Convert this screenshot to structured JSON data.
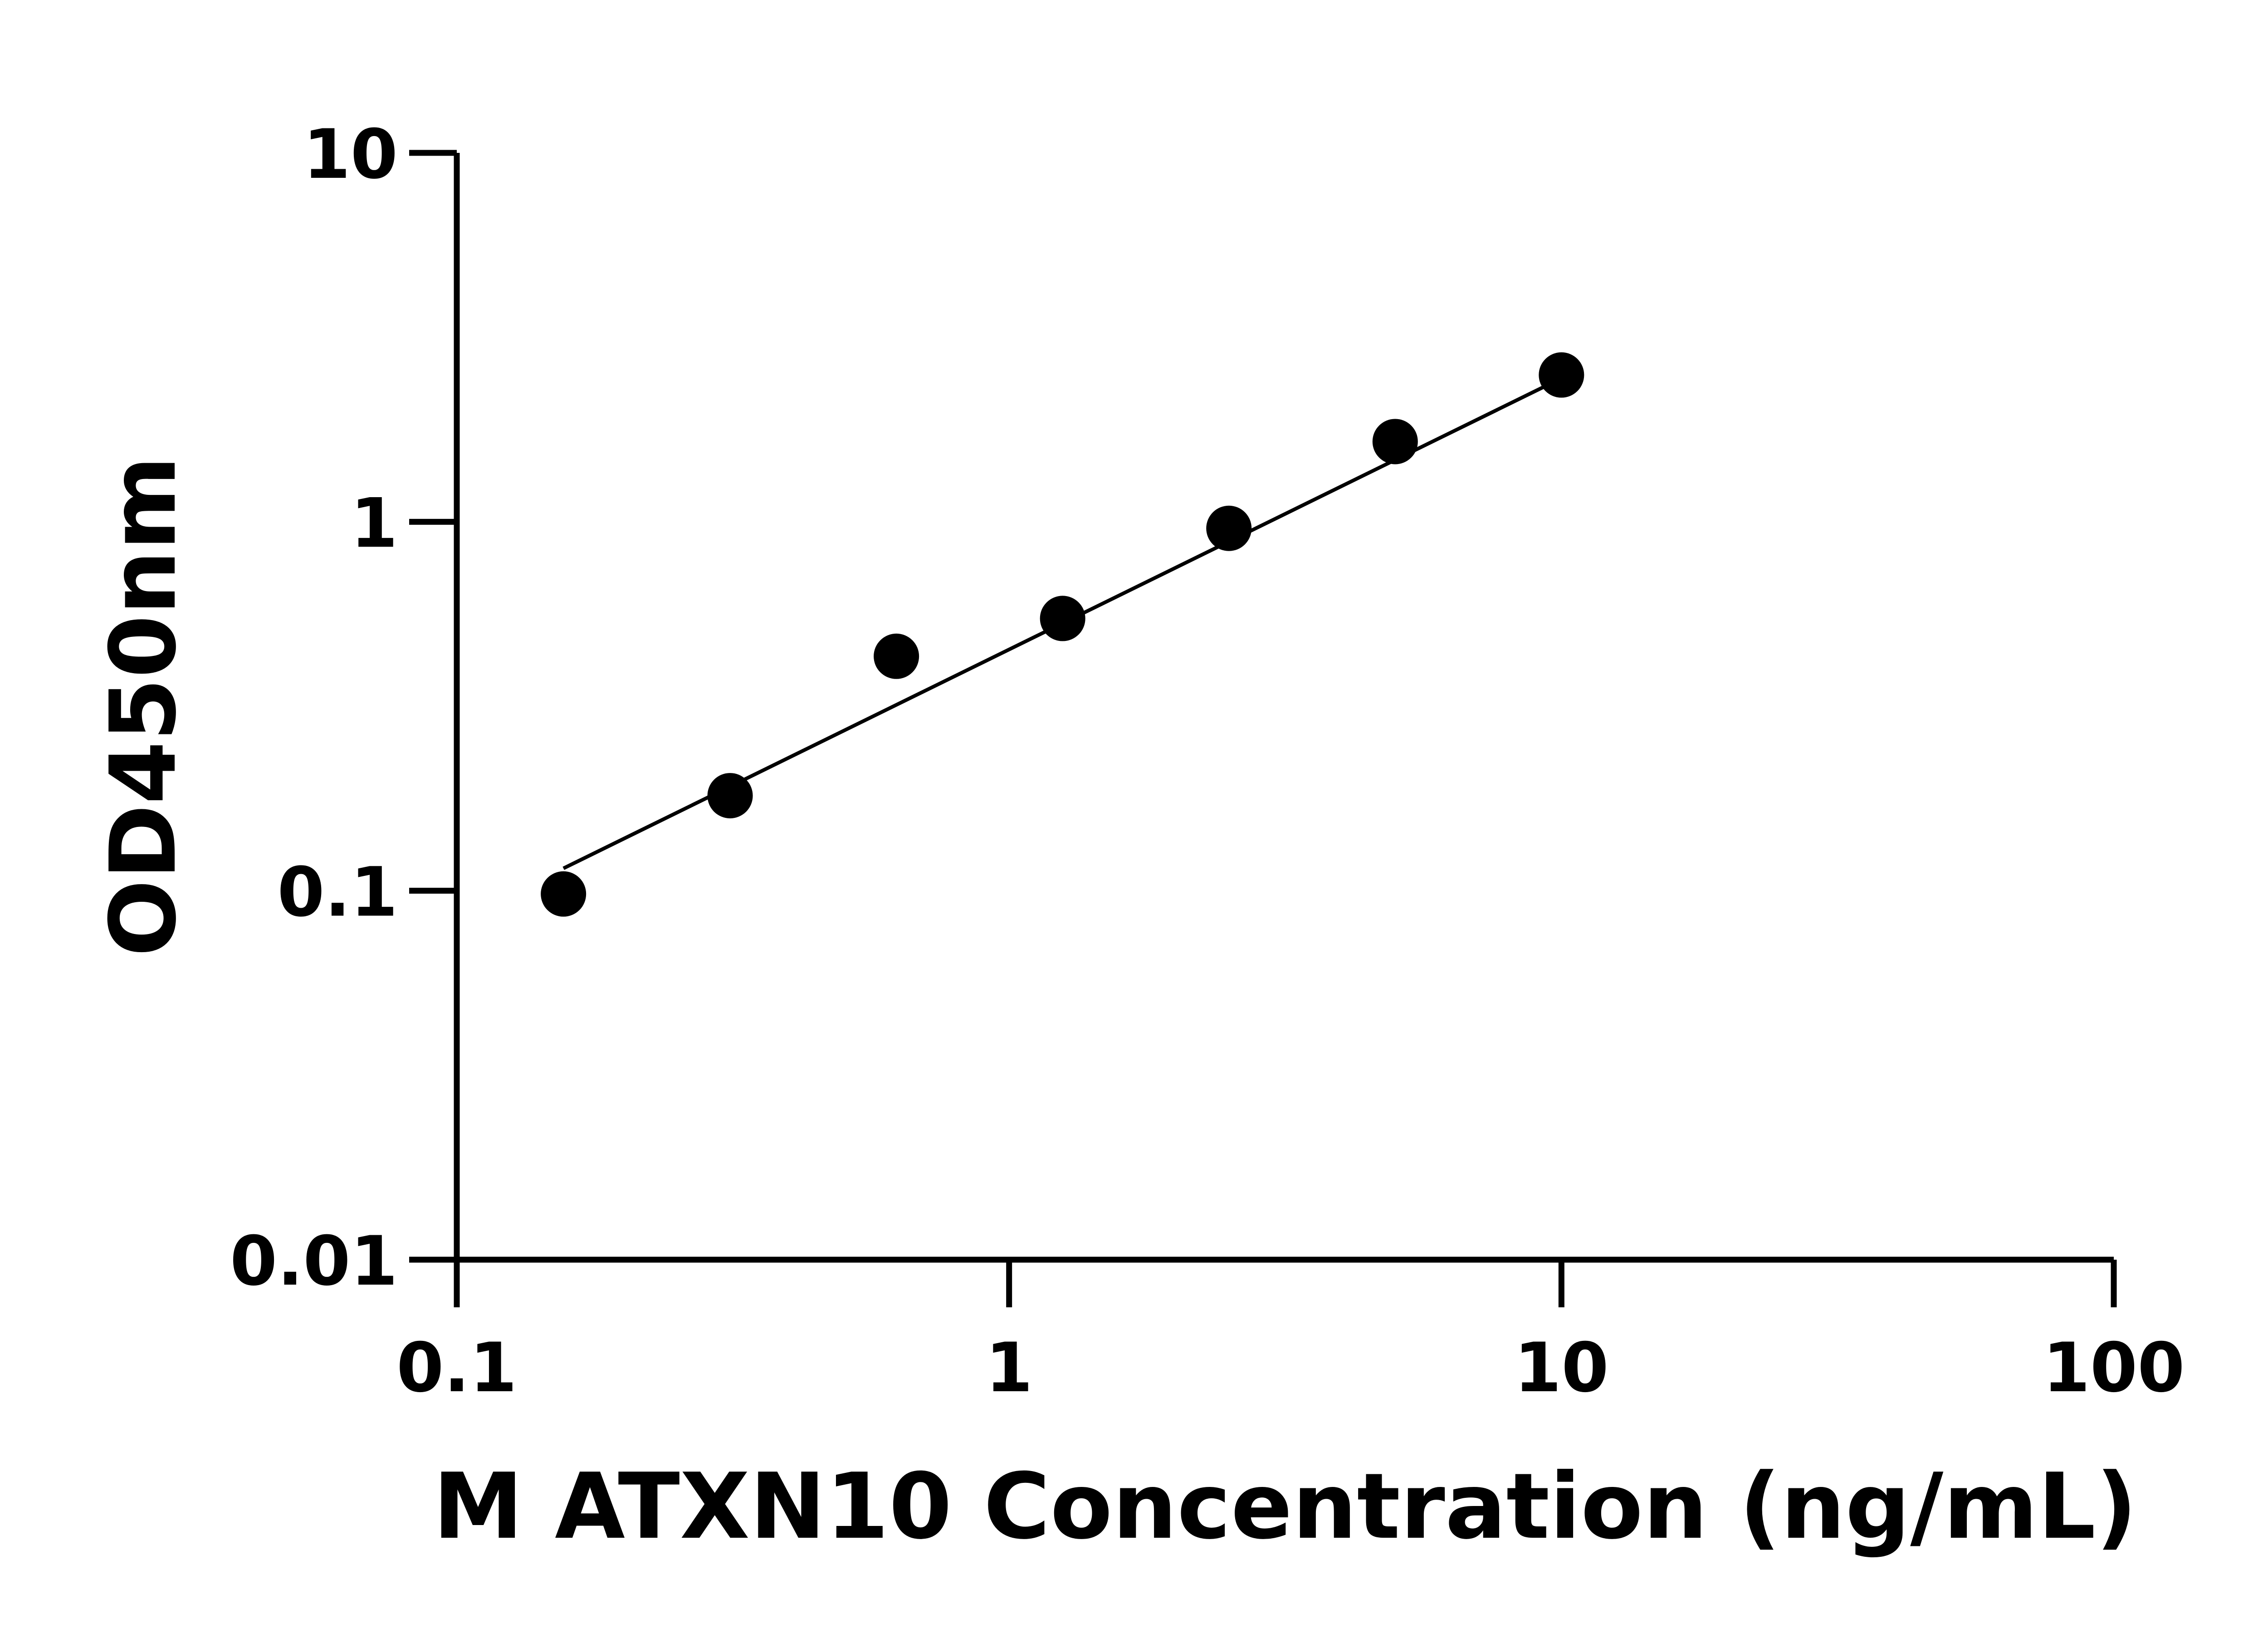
{
  "chart_data": {
    "type": "scatter",
    "title": "",
    "xlabel": "M ATXN10 Concentration (ng/mL)",
    "ylabel": "OD450nm",
    "xscale": "log",
    "yscale": "log",
    "xlim": [
      0.1,
      100
    ],
    "ylim": [
      0.01,
      10
    ],
    "xticks": [
      "0.1",
      "1",
      "10",
      "100"
    ],
    "yticks": [
      "0.01",
      "0.1",
      "1",
      "10"
    ],
    "grid": false,
    "legend": "none",
    "points": [
      {
        "x": 0.156,
        "y": 0.098
      },
      {
        "x": 0.3125,
        "y": 0.181
      },
      {
        "x": 0.625,
        "y": 0.432
      },
      {
        "x": 1.25,
        "y": 0.547
      },
      {
        "x": 2.5,
        "y": 0.96
      },
      {
        "x": 5,
        "y": 1.65
      },
      {
        "x": 10,
        "y": 2.5
      }
    ],
    "fit_line": [
      {
        "x": 0.156,
        "y": 0.115
      },
      {
        "x": 10,
        "y": 2.45
      }
    ],
    "marker_color": "#000000",
    "line_color": "#000000"
  }
}
